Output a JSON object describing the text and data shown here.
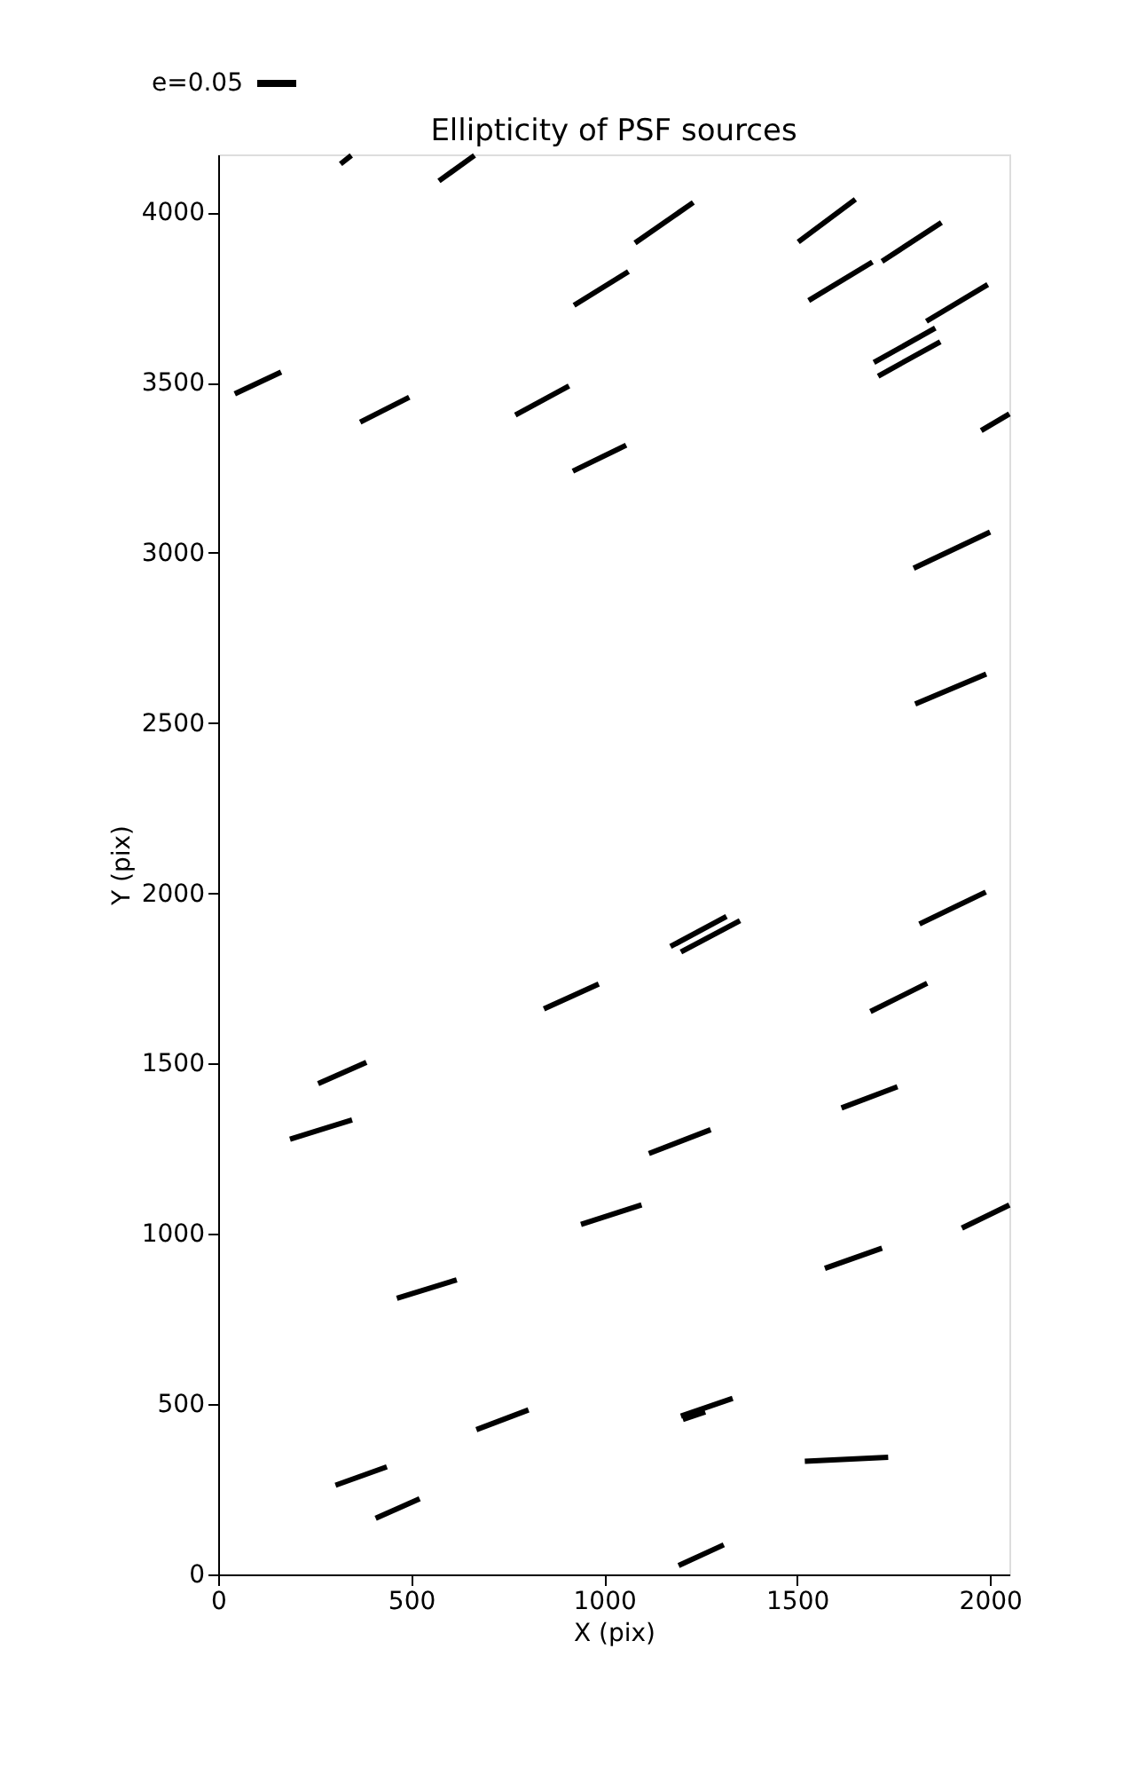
{
  "chart_data": {
    "type": "line",
    "title": "Ellipticity of PSF sources",
    "xlabel": "X (pix)",
    "ylabel": "Y (pix)",
    "xlim": [
      0,
      2050
    ],
    "ylim": [
      0,
      4170
    ],
    "xticks": [
      0,
      500,
      1000,
      1500,
      2000
    ],
    "yticks": [
      0,
      500,
      1000,
      1500,
      2000,
      2500,
      3000,
      3500,
      4000
    ],
    "grid": false,
    "marker": "none",
    "line_style": "solid",
    "annotations": [
      "e=0.05"
    ],
    "series": [
      {
        "color": "#000000",
        "x": [
          317,
          345
        ],
        "values": [
          4142,
          4167
        ]
      },
      {
        "color": "#000000",
        "x": [
          572,
          664
        ],
        "values": [
          4092,
          4167
        ]
      },
      {
        "color": "#000000",
        "x": [
          1080,
          1231
        ],
        "values": [
          3910,
          4029
        ]
      },
      {
        "color": "#000000",
        "x": [
          1503,
          1651
        ],
        "values": [
          3913,
          4038
        ]
      },
      {
        "color": "#000000",
        "x": [
          922,
          1063
        ],
        "values": [
          3727,
          3826
        ]
      },
      {
        "color": "#000000",
        "x": [
          1720,
          1874
        ],
        "values": [
          3856,
          3970
        ]
      },
      {
        "color": "#000000",
        "x": [
          1530,
          1695
        ],
        "values": [
          3741,
          3854
        ]
      },
      {
        "color": "#000000",
        "x": [
          1835,
          1994
        ],
        "values": [
          3680,
          3788
        ]
      },
      {
        "color": "#000000",
        "x": [
          1699,
          1858
        ],
        "values": [
          3559,
          3660
        ]
      },
      {
        "color": "#000000",
        "x": [
          1710,
          1871
        ],
        "values": [
          3519,
          3620
        ]
      },
      {
        "color": "#000000",
        "x": [
          43,
          163
        ],
        "values": [
          3467,
          3531
        ]
      },
      {
        "color": "#000000",
        "x": [
          368,
          495
        ],
        "values": [
          3384,
          3457
        ]
      },
      {
        "color": "#000000",
        "x": [
          770,
          909
        ],
        "values": [
          3405,
          3490
        ]
      },
      {
        "color": "#000000",
        "x": [
          919,
          1057
        ],
        "values": [
          3240,
          3316
        ]
      },
      {
        "color": "#000000",
        "x": [
          1977,
          2050
        ],
        "values": [
          3359,
          3408
        ]
      },
      {
        "color": "#000000",
        "x": [
          1802,
          2000
        ],
        "values": [
          2955,
          3061
        ]
      },
      {
        "color": "#000000",
        "x": [
          1806,
          1990
        ],
        "values": [
          2556,
          2644
        ]
      },
      {
        "color": "#000000",
        "x": [
          1817,
          1989
        ],
        "values": [
          1910,
          2004
        ]
      },
      {
        "color": "#000000",
        "x": [
          1172,
          1317
        ],
        "values": [
          1844,
          1932
        ]
      },
      {
        "color": "#000000",
        "x": [
          1199,
          1352
        ],
        "values": [
          1828,
          1920
        ]
      },
      {
        "color": "#000000",
        "x": [
          844,
          986
        ],
        "values": [
          1661,
          1734
        ]
      },
      {
        "color": "#000000",
        "x": [
          1690,
          1837
        ],
        "values": [
          1653,
          1736
        ]
      },
      {
        "color": "#000000",
        "x": [
          259,
          384
        ],
        "values": [
          1441,
          1504
        ]
      },
      {
        "color": "#000000",
        "x": [
          186,
          347
        ],
        "values": [
          1278,
          1335
        ]
      },
      {
        "color": "#000000",
        "x": [
          1615,
          1760
        ],
        "values": [
          1370,
          1432
        ]
      },
      {
        "color": "#000000",
        "x": [
          1116,
          1276
        ],
        "values": [
          1236,
          1306
        ]
      },
      {
        "color": "#000000",
        "x": [
          940,
          1097
        ],
        "values": [
          1028,
          1085
        ]
      },
      {
        "color": "#000000",
        "x": [
          1927,
          2050
        ],
        "values": [
          1017,
          1085
        ]
      },
      {
        "color": "#000000",
        "x": [
          1572,
          1720
        ],
        "values": [
          899,
          958
        ]
      },
      {
        "color": "#000000",
        "x": [
          463,
          618
        ],
        "values": [
          811,
          865
        ]
      },
      {
        "color": "#000000",
        "x": [
          669,
          804
        ],
        "values": [
          425,
          483
        ]
      },
      {
        "color": "#000000",
        "x": [
          1199,
          1333
        ],
        "values": [
          465,
          517
        ]
      },
      {
        "color": "#000000",
        "x": [
          1204,
          1262
        ],
        "values": [
          455,
          477
        ]
      },
      {
        "color": "#000000",
        "x": [
          304,
          437
        ],
        "values": [
          262,
          316
        ]
      },
      {
        "color": "#000000",
        "x": [
          1520,
          1736
        ],
        "values": [
          332,
          344
        ]
      },
      {
        "color": "#000000",
        "x": [
          408,
          522
        ],
        "values": [
          165,
          222
        ]
      },
      {
        "color": "#000000",
        "x": [
          1193,
          1310
        ],
        "values": [
          26,
          87
        ]
      }
    ]
  }
}
